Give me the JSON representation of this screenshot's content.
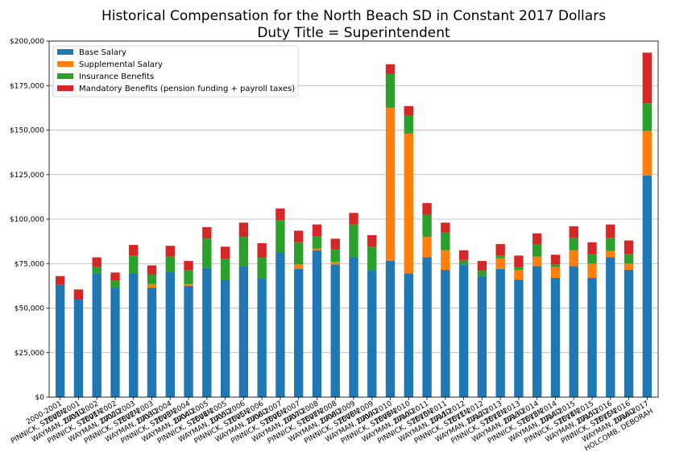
{
  "chart_data": {
    "type": "bar",
    "stacked": true,
    "title": "Historical Compensation for the North Beach SD in Constant 2017 Dollars",
    "subtitle": "Duty Title = Superintendent",
    "xlabel": "",
    "ylabel": "",
    "ylim": [
      0,
      200000
    ],
    "yticks": [
      0,
      25000,
      50000,
      75000,
      100000,
      125000,
      150000,
      175000,
      200000
    ],
    "ytick_labels": [
      "$0",
      "$25,000",
      "$50,000",
      "$75,000",
      "$100,000",
      "$125,000",
      "$150,000",
      "$175,000",
      "$200,000"
    ],
    "grid": "horizontal",
    "legend_position": "top-left",
    "categories": [
      "2000-2001\nPINNICK, STEVEN",
      "2000-2001\nWAYMAN, DAVID",
      "2001-2002\nPINNICK, STEVEN",
      "2001-2002\nWAYMAN, DAVID",
      "2002-2003\nPINNICK, STEVEN",
      "2002-2003\nWAYMAN, DAVID",
      "2003-2004\nPINNICK, STEVEN",
      "2003-2004\nWAYMAN, DAVID",
      "2004-2005\nPINNICK, STEVEN",
      "2004-2005\nWAYMAN, DAVID",
      "2005-2006\nPINNICK, STEVEN",
      "2005-2006\nWAYMAN, DAVID",
      "2006-2007\nPINNICK, STEVEN",
      "2006-2007\nWAYMAN, DAVID",
      "2007-2008\nPINNICK, STEVEN",
      "2007-2008\nWAYMAN, DAVID",
      "2008-2009\nPINNICK, STEVEN",
      "2008-2009\nWAYMAN, DAVID",
      "2009-2010\nPINNICK, STEVEN",
      "2009-2010\nWAYMAN, DAVID",
      "2010-2011\nPINNICK, STEVEN",
      "2010-2011\nWAYMAN, DAVID",
      "2011-2012\nPINNICK, STEVEN",
      "2011-2012\nWAYMAN, DAVID",
      "2012-2013\nPINNICK, STEVEN",
      "2012-2013\nWAYMAN, DAVID",
      "2013-2014\nPINNICK, STEVEN",
      "2013-2014\nWAYMAN, DAVID",
      "2014-2015\nPINNICK, STEVEN",
      "2014-2015\nWAYMAN, DAVID",
      "2015-2016\nPINNICK, STEVEN",
      "2015-2016\nWAYMAN, DAVID",
      "2016-2017\nHOLCOMB, DEBORAH"
    ],
    "series": [
      {
        "name": "Base Salary",
        "color": "#1f77b4",
        "values": [
          63000,
          55000,
          69500,
          61500,
          69500,
          61500,
          70500,
          62500,
          72500,
          66000,
          73500,
          66500,
          81000,
          72000,
          82500,
          74500,
          78500,
          71000,
          76500,
          69500,
          78500,
          71500,
          74500,
          68000,
          72000,
          66000,
          73500,
          67000,
          73500,
          67000,
          78500,
          71500,
          124500
        ]
      },
      {
        "name": "Supplemental Salary",
        "color": "#ff7f0e",
        "values": [
          0,
          0,
          0,
          0,
          0,
          2000,
          0,
          1000,
          0,
          0,
          0,
          0,
          0,
          2500,
          1000,
          1500,
          0,
          0,
          86000,
          78500,
          11500,
          11000,
          0,
          0,
          6000,
          5500,
          5500,
          6000,
          9000,
          8000,
          3500,
          3500,
          25000
        ]
      },
      {
        "name": "Insurance Benefits",
        "color": "#2ca02c",
        "values": [
          0,
          0,
          3500,
          4000,
          10000,
          5500,
          8500,
          8000,
          16500,
          11500,
          16500,
          12000,
          18500,
          12500,
          7000,
          7000,
          18500,
          13500,
          19000,
          10000,
          12500,
          10000,
          2500,
          3000,
          1500,
          1500,
          7000,
          1500,
          7000,
          5500,
          7500,
          5500,
          15500
        ]
      },
      {
        "name": "Mandatory Benefits (pension funding + payroll taxes)",
        "color": "#d62728",
        "values": [
          5000,
          5500,
          5500,
          4500,
          6000,
          5000,
          6000,
          5000,
          6500,
          7000,
          8000,
          8000,
          6500,
          6500,
          6500,
          6000,
          6500,
          6500,
          5500,
          5500,
          6500,
          5500,
          5500,
          5500,
          6500,
          6500,
          6000,
          5500,
          6500,
          6500,
          7500,
          7500,
          28500
        ]
      }
    ]
  }
}
